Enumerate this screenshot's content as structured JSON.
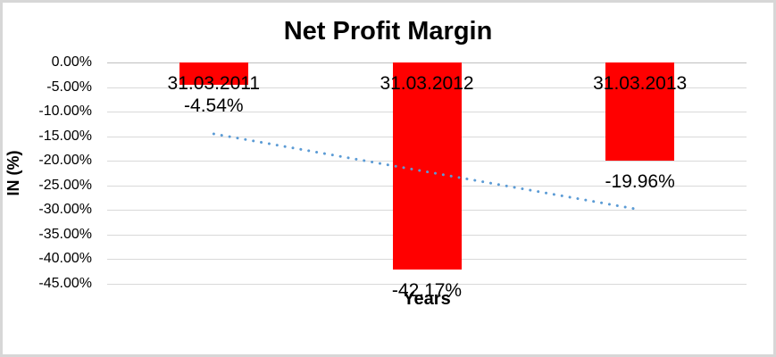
{
  "chart_data": {
    "type": "bar",
    "title": "Net Profit Margin",
    "xlabel": "Years",
    "ylabel": "IN (%)",
    "categories": [
      "31.03.2011",
      "31.03.2012",
      "31.03.2013"
    ],
    "values": [
      -4.54,
      -42.17,
      -19.96
    ],
    "data_labels": [
      "-4.54%",
      "-42.17%",
      "-19.96%"
    ],
    "y_ticks": [
      "0.00%",
      "-5.00%",
      "-10.00%",
      "-15.00%",
      "-20.00%",
      "-25.00%",
      "-30.00%",
      "-35.00%",
      "-40.00%",
      "-45.00%"
    ],
    "ylim": [
      -45,
      0
    ],
    "grid": true,
    "legend_position": "none",
    "bar_color": "#ff0000",
    "trendline": {
      "type": "linear",
      "style": "dotted",
      "color": "#5b9bd5",
      "start_value": -14.51,
      "end_value": -29.93
    }
  }
}
